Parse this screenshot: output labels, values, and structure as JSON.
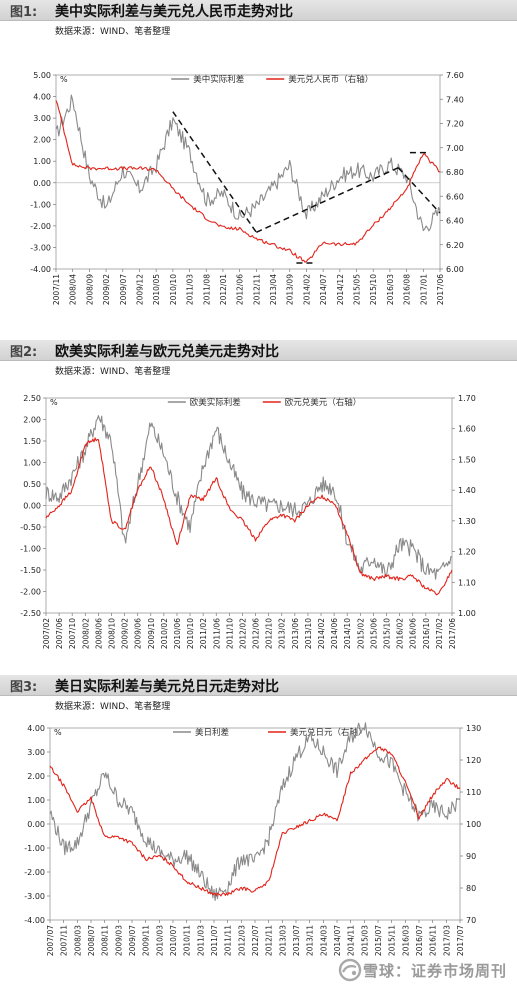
{
  "figures": [
    {
      "label": "图1:",
      "title": "美中实际利差与美元兑人民币走势对比",
      "source": "数据来源：WIND、笔者整理",
      "chart_data": {
        "type": "line",
        "left_unit": "%",
        "legend": [
          "美中实际利差",
          "美元兑人民币（右轴）"
        ],
        "left_ticks": [
          "5.00",
          "4.00",
          "3.00",
          "2.00",
          "1.00",
          "0.00",
          "-1.00",
          "-2.00",
          "-3.00",
          "-4.00"
        ],
        "right_ticks": [
          "7.60",
          "7.40",
          "7.20",
          "7.00",
          "6.80",
          "6.60",
          "6.40",
          "6.20",
          "6.00"
        ],
        "ylim_left": [
          -4,
          5
        ],
        "ylim_right": [
          6.0,
          7.6
        ],
        "x_ticks": [
          "2007/11",
          "2008/04",
          "2008/09",
          "2009/02",
          "2009/07",
          "2009/12",
          "2010/05",
          "2010/10",
          "2011/03",
          "2011/08",
          "2012/01",
          "2012/06",
          "2012/11",
          "2013/04",
          "2013/09",
          "2014/02",
          "2014/07",
          "2014/12",
          "2015/05",
          "2015/10",
          "2016/03",
          "2016/08",
          "2017/01",
          "2017/06"
        ],
        "series": [
          {
            "name": "美中实际利差",
            "axis": "left",
            "color": "#8a8a8a",
            "x": [
              0,
              1,
              2,
              3,
              4,
              5,
              6,
              7,
              8,
              9,
              10,
              11,
              12,
              13,
              14,
              15,
              16,
              17,
              18,
              19,
              20,
              21,
              22,
              23
            ],
            "values": [
              2.2,
              3.9,
              0.3,
              -1.2,
              0.6,
              -0.3,
              0.8,
              2.9,
              1.4,
              -0.8,
              -0.5,
              -1.6,
              -1.1,
              -0.2,
              0.8,
              -1.5,
              -0.6,
              0.3,
              0.6,
              0.3,
              0.9,
              0.3,
              -2.2,
              -1.3
            ]
          },
          {
            "name": "美元兑人民币（右轴）",
            "axis": "right",
            "color": "#e2231a",
            "x": [
              0,
              1,
              2,
              3,
              4,
              5,
              6,
              7,
              8,
              9,
              10,
              11,
              12,
              13,
              14,
              15,
              16,
              17,
              18,
              19,
              20,
              21,
              22,
              23
            ],
            "values": [
              7.4,
              6.86,
              6.83,
              6.83,
              6.83,
              6.83,
              6.82,
              6.66,
              6.53,
              6.42,
              6.34,
              6.33,
              6.25,
              6.2,
              6.15,
              6.05,
              6.22,
              6.2,
              6.21,
              6.36,
              6.5,
              6.66,
              6.95,
              6.8
            ]
          }
        ],
        "annotations": [
          {
            "type": "dashed-trend",
            "x": [
              7,
              12
            ],
            "axis": "left",
            "values": [
              3.3,
              -2.3
            ]
          },
          {
            "type": "dashed-trend",
            "x": [
              12,
              20.5
            ],
            "axis": "left",
            "values": [
              -2.3,
              0.7
            ]
          },
          {
            "type": "dashed-trend",
            "x": [
              20.5,
              23
            ],
            "axis": "left",
            "values": [
              0.7,
              -1.4
            ]
          },
          {
            "type": "dashed-trend",
            "x": [
              21.2,
              22.2
            ],
            "axis": "right",
            "values": [
              6.96,
              6.96
            ]
          },
          {
            "type": "dashed-trend",
            "x": [
              14.4,
              15.4
            ],
            "axis": "right",
            "values": [
              6.05,
              6.05
            ]
          }
        ]
      }
    },
    {
      "label": "图2:",
      "title": "欧美实际利差与欧元兑美元走势对比",
      "source": "数据来源：WIND、笔者整理",
      "chart_data": {
        "type": "line",
        "left_unit": "%",
        "legend": [
          "欧美实际利差",
          "欧元兑美元（右轴）"
        ],
        "left_ticks": [
          "2.50",
          "2.00",
          "1.50",
          "1.00",
          "0.50",
          "0.00",
          "-0.50",
          "-1.00",
          "-1.50",
          "-2.00",
          "-2.50"
        ],
        "right_ticks": [
          "1.70",
          "1.60",
          "1.50",
          "1.40",
          "1.30",
          "1.20",
          "1.10",
          "1.00"
        ],
        "ylim_left": [
          -2.5,
          2.5
        ],
        "ylim_right": [
          1.0,
          1.7
        ],
        "x_ticks": [
          "2007/02",
          "2007/06",
          "2007/10",
          "2008/02",
          "2008/06",
          "2008/10",
          "2009/02",
          "2009/06",
          "2009/10",
          "2010/02",
          "2010/06",
          "2010/10",
          "2011/02",
          "2011/06",
          "2011/10",
          "2012/02",
          "2012/06",
          "2012/10",
          "2013/02",
          "2013/06",
          "2013/10",
          "2014/02",
          "2014/06",
          "2014/10",
          "2015/02",
          "2015/06",
          "2015/10",
          "2016/02",
          "2016/06",
          "2016/10",
          "2017/02",
          "2017/06"
        ],
        "series": [
          {
            "name": "欧美实际利差",
            "axis": "left",
            "color": "#8a8a8a",
            "x": [
              0,
              1,
              2,
              3,
              4,
              5,
              6,
              7,
              8,
              9,
              10,
              11,
              12,
              13,
              14,
              15,
              16,
              17,
              18,
              19,
              20,
              21,
              22,
              23,
              24,
              25,
              26,
              27,
              28,
              29,
              30,
              31
            ],
            "values": [
              0.3,
              0.2,
              0.7,
              1.3,
              2.1,
              1.5,
              -0.9,
              0.5,
              1.9,
              1.2,
              0.2,
              -0.5,
              0.9,
              1.8,
              1.0,
              0.3,
              0.1,
              0.0,
              0.0,
              -0.1,
              0.0,
              0.5,
              0.4,
              -0.8,
              -1.5,
              -1.2,
              -1.6,
              -0.9,
              -1.0,
              -1.5,
              -1.6,
              -1.2
            ]
          },
          {
            "name": "欧元兑美元（右轴）",
            "axis": "right",
            "color": "#e2231a",
            "x": [
              0,
              1,
              2,
              3,
              4,
              5,
              6,
              7,
              8,
              9,
              10,
              11,
              12,
              13,
              14,
              15,
              16,
              17,
              18,
              19,
              20,
              21,
              22,
              23,
              24,
              25,
              26,
              27,
              28,
              29,
              30,
              31
            ],
            "values": [
              1.31,
              1.35,
              1.4,
              1.55,
              1.57,
              1.3,
              1.27,
              1.4,
              1.48,
              1.37,
              1.22,
              1.38,
              1.37,
              1.44,
              1.34,
              1.3,
              1.24,
              1.3,
              1.32,
              1.3,
              1.35,
              1.38,
              1.36,
              1.26,
              1.13,
              1.11,
              1.12,
              1.11,
              1.12,
              1.08,
              1.06,
              1.14
            ]
          }
        ]
      }
    },
    {
      "label": "图3:",
      "title": "美日实际利差与美元兑日元走势对比",
      "source": "数据来源：WIND、笔者整理",
      "chart_data": {
        "type": "line",
        "left_unit": "%",
        "legend": [
          "美日利差",
          "美元兑日元（右轴）"
        ],
        "left_ticks": [
          "4.00",
          "3.00",
          "2.00",
          "1.00",
          "0.00",
          "-1.00",
          "-2.00",
          "-3.00",
          "-4.00"
        ],
        "right_ticks": [
          "130",
          "120",
          "110",
          "100",
          "90",
          "80",
          "70"
        ],
        "ylim_left": [
          -4,
          4
        ],
        "ylim_right": [
          70,
          130
        ],
        "x_ticks": [
          "2007/07",
          "2007/11",
          "2008/03",
          "2008/07",
          "2008/11",
          "2009/03",
          "2009/07",
          "2009/11",
          "2010/03",
          "2010/07",
          "2010/11",
          "2011/03",
          "2011/07",
          "2011/11",
          "2012/03",
          "2012/07",
          "2012/11",
          "2013/03",
          "2013/07",
          "2013/11",
          "2014/03",
          "2014/07",
          "2014/11",
          "2015/03",
          "2015/07",
          "2015/11",
          "2016/03",
          "2016/07",
          "2016/11",
          "2017/03",
          "2017/07"
        ],
        "series": [
          {
            "name": "美日利差",
            "axis": "left",
            "color": "#8a8a8a",
            "x": [
              0,
              1,
              2,
              3,
              4,
              5,
              6,
              7,
              8,
              9,
              10,
              11,
              12,
              13,
              14,
              15,
              16,
              17,
              18,
              19,
              20,
              21,
              22,
              23,
              24,
              25,
              26,
              27,
              28,
              29,
              30
            ],
            "values": [
              0.5,
              -1.0,
              -0.8,
              0.8,
              2.1,
              1.0,
              0.5,
              -0.6,
              -1.2,
              -1.5,
              -1.3,
              -2.1,
              -3.0,
              -2.6,
              -1.4,
              -1.6,
              -0.6,
              1.5,
              2.8,
              3.6,
              3.0,
              2.2,
              3.6,
              4.2,
              3.0,
              2.5,
              1.3,
              0.3,
              0.7,
              0.4,
              1.0
            ]
          },
          {
            "name": "美元兑日元（右轴）",
            "axis": "right",
            "color": "#e2231a",
            "x": [
              0,
              1,
              2,
              3,
              4,
              5,
              6,
              7,
              8,
              9,
              10,
              11,
              12,
              13,
              14,
              15,
              16,
              17,
              18,
              19,
              20,
              21,
              22,
              23,
              24,
              25,
              26,
              27,
              28,
              29,
              30
            ],
            "values": [
              118,
              112,
              104,
              108,
              96,
              96,
              94,
              89,
              90,
              87,
              82,
              80,
              78,
              78,
              80,
              79,
              82,
              97,
              99,
              101,
              103,
              101,
              116,
              120,
              124,
              122,
              113,
              102,
              109,
              114,
              111
            ]
          }
        ]
      }
    }
  ],
  "watermark": {
    "text": "雪球：证券市场周刊"
  }
}
